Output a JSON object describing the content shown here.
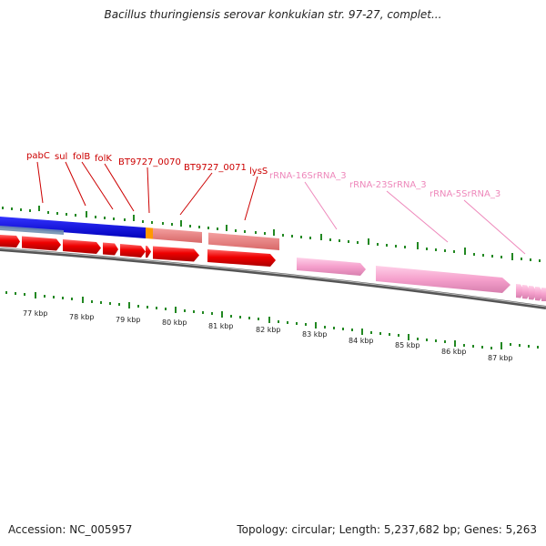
{
  "title": "Bacillus thuringiensis serovar konkukian str. 97-27, complet...",
  "footer": {
    "accession": "Accession: NC_005957",
    "topology": "Topology: circular; Length: 5,237,682 bp; Genes: 5,263"
  },
  "features": [
    {
      "name": "pabC",
      "color": "#cc0000"
    },
    {
      "name": "sul",
      "color": "#cc0000"
    },
    {
      "name": "folB",
      "color": "#cc0000"
    },
    {
      "name": "folK",
      "color": "#cc0000"
    },
    {
      "name": "BT9727_0070",
      "color": "#cc0000"
    },
    {
      "name": "BT9727_0071",
      "color": "#cc0000"
    },
    {
      "name": "lysS",
      "color": "#cc0000"
    },
    {
      "name": "rRNA-16SrRNA_3",
      "color": "#ee88bb"
    },
    {
      "name": "rRNA-23SrRNA_3",
      "color": "#ee88bb"
    },
    {
      "name": "rRNA-5SrRNA_3",
      "color": "#ee88bb"
    }
  ],
  "scale": {
    "labels": [
      "77 kbp",
      "78 kbp",
      "79 kbp",
      "80 kbp",
      "81 kbp",
      "82 kbp",
      "83 kbp",
      "84 kbp",
      "85 kbp",
      "86 kbp",
      "87 kbp"
    ]
  },
  "colors": {
    "cds": "#ee0000",
    "rrna": "#f5a0cc",
    "gc_blue": "#0000dd",
    "gc_salmon": "#e88080",
    "backbone": "#777777",
    "tick": "#228822"
  }
}
